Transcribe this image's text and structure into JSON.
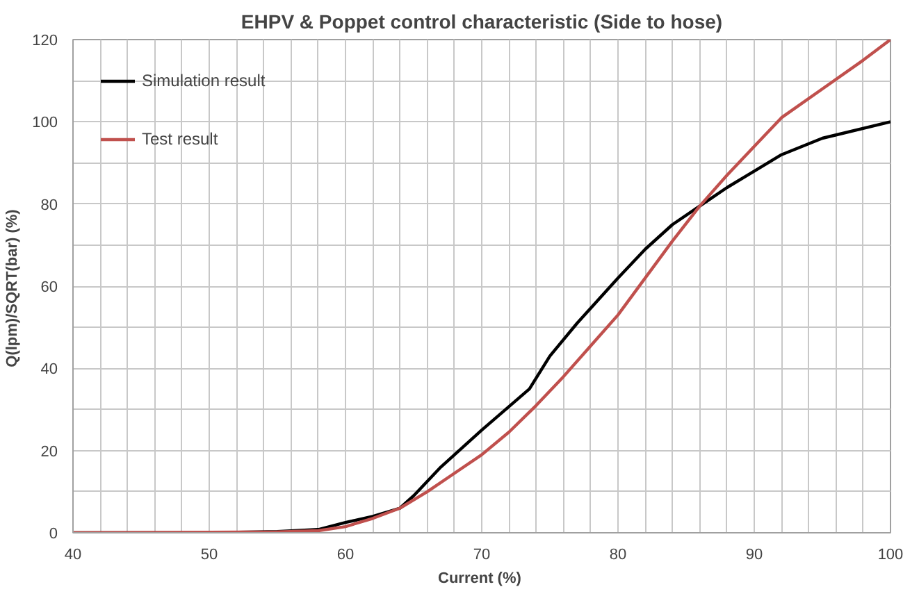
{
  "chart_data": {
    "type": "line",
    "title": "EHPV & Poppet control characteristic (Side to hose)",
    "xlabel": "Current  (%)",
    "ylabel": "Q(lpm)/SQRT(bar)  (%)",
    "xlim": [
      40,
      100
    ],
    "ylim": [
      0,
      120
    ],
    "xticks": [
      40,
      {
        "value": 42,
        "label": null
      },
      {
        "value": 44,
        "label": null
      },
      {
        "value": 46,
        "label": null
      },
      {
        "value": 48,
        "label": null
      },
      50,
      {
        "value": 52,
        "label": null
      },
      {
        "value": 54,
        "label": null
      },
      {
        "value": 56,
        "label": null
      },
      {
        "value": 58,
        "label": null
      },
      60,
      {
        "value": 62,
        "label": null
      },
      {
        "value": 64,
        "label": null
      },
      {
        "value": 66,
        "label": null
      },
      {
        "value": 68,
        "label": null
      },
      70,
      {
        "value": 72,
        "label": null
      },
      {
        "value": 74,
        "label": null
      },
      {
        "value": 76,
        "label": null
      },
      {
        "value": 78,
        "label": null
      },
      80,
      {
        "value": 82,
        "label": null
      },
      {
        "value": 84,
        "label": null
      },
      {
        "value": 86,
        "label": null
      },
      {
        "value": 88,
        "label": null
      },
      90,
      {
        "value": 92,
        "label": null
      },
      {
        "value": 94,
        "label": null
      },
      {
        "value": 96,
        "label": null
      },
      {
        "value": 98,
        "label": null
      },
      100
    ],
    "yticks": [
      0,
      {
        "value": 10,
        "label": null
      },
      20,
      {
        "value": 30,
        "label": null
      },
      40,
      {
        "value": 50,
        "label": null
      },
      60,
      {
        "value": 70,
        "label": null
      },
      80,
      {
        "value": 90,
        "label": null
      },
      100,
      {
        "value": 110,
        "label": null
      },
      120
    ],
    "grid": true,
    "legend": "top left",
    "line_style": "solid",
    "marker": "none",
    "series": [
      {
        "name": "Simulation result",
        "color": "#000000",
        "x": [
          40,
          50,
          55,
          58,
          60,
          62,
          64,
          65,
          67,
          70,
          73.5,
          75,
          77,
          80,
          82,
          84,
          86,
          88,
          90,
          92,
          95,
          100
        ],
        "values": [
          0,
          0,
          0.3,
          0.8,
          2.5,
          4,
          6,
          9,
          16,
          25,
          35,
          43,
          51,
          62,
          69,
          75,
          79.5,
          84,
          88,
          92,
          96,
          100
        ]
      },
      {
        "name": "Test result",
        "color": "#c0504d",
        "x": [
          40,
          55,
          58,
          60,
          62,
          64,
          66,
          68,
          70,
          72,
          74,
          76,
          78,
          80,
          82,
          84,
          86,
          88,
          90,
          92,
          95,
          98,
          100
        ],
        "values": [
          0,
          0.2,
          0.5,
          1.5,
          3.5,
          6,
          10,
          14.5,
          19,
          24.5,
          31,
          38,
          45.5,
          53,
          62,
          71,
          79.5,
          87,
          94,
          101,
          108,
          115,
          120
        ]
      }
    ]
  }
}
